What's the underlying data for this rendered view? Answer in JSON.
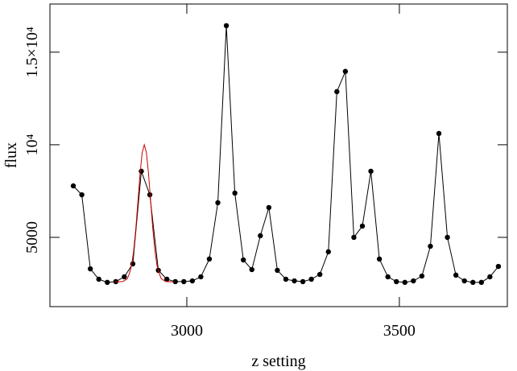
{
  "chart_data": {
    "type": "line",
    "xlabel": "z setting",
    "ylabel": "flux",
    "xlim": [
      2678,
      3754
    ],
    "ylim": [
      1260,
      17600
    ],
    "xticks": [
      3000,
      3500
    ],
    "yticks": [
      5000,
      {
        "value": 10000,
        "label": "10⁴"
      },
      {
        "value": 15000,
        "label": "1.5×10⁴"
      }
    ],
    "series": [
      {
        "color": "#000000",
        "markers": true,
        "x": [
          2733,
          2753,
          2773,
          2793,
          2813,
          2833,
          2853,
          2873,
          2893,
          2913,
          2933,
          2953,
          2973,
          2993,
          3013,
          3033,
          3053,
          3073,
          3093,
          3113,
          3133,
          3153,
          3173,
          3193,
          3213,
          3233,
          3253,
          3273,
          3293,
          3313,
          3333,
          3353,
          3373,
          3393,
          3413,
          3433,
          3453,
          3473,
          3493,
          3513,
          3533,
          3553,
          3573,
          3593,
          3613,
          3633,
          3653,
          3673,
          3693,
          3713,
          3733
        ],
        "values": [
          7780,
          7300,
          3300,
          2740,
          2570,
          2610,
          2870,
          3570,
          8570,
          7300,
          3220,
          2740,
          2610,
          2610,
          2650,
          2870,
          3830,
          6870,
          16430,
          7390,
          3780,
          3260,
          5090,
          6610,
          3220,
          2740,
          2650,
          2610,
          2740,
          3000,
          4220,
          12870,
          13960,
          5000,
          5610,
          8570,
          3830,
          2870,
          2610,
          2570,
          2650,
          2910,
          4520,
          10610,
          5000,
          2960,
          2650,
          2570,
          2570,
          2870,
          3430
        ]
      },
      {
        "color": "#cc0000",
        "markers": false,
        "x": [
          2830,
          2840,
          2850,
          2860,
          2865,
          2870,
          2875,
          2880,
          2885,
          2890,
          2895,
          2900,
          2905,
          2910,
          2915,
          2920,
          2925,
          2930,
          2935,
          2940,
          2950,
          2960,
          2970
        ],
        "values": [
          2600,
          2601,
          2619,
          2765,
          3050,
          3470,
          4275,
          5460,
          6935,
          8430,
          9573,
          10000,
          9573,
          8430,
          6935,
          5460,
          4275,
          3470,
          3050,
          2765,
          2619,
          2601,
          2600
        ]
      }
    ]
  }
}
